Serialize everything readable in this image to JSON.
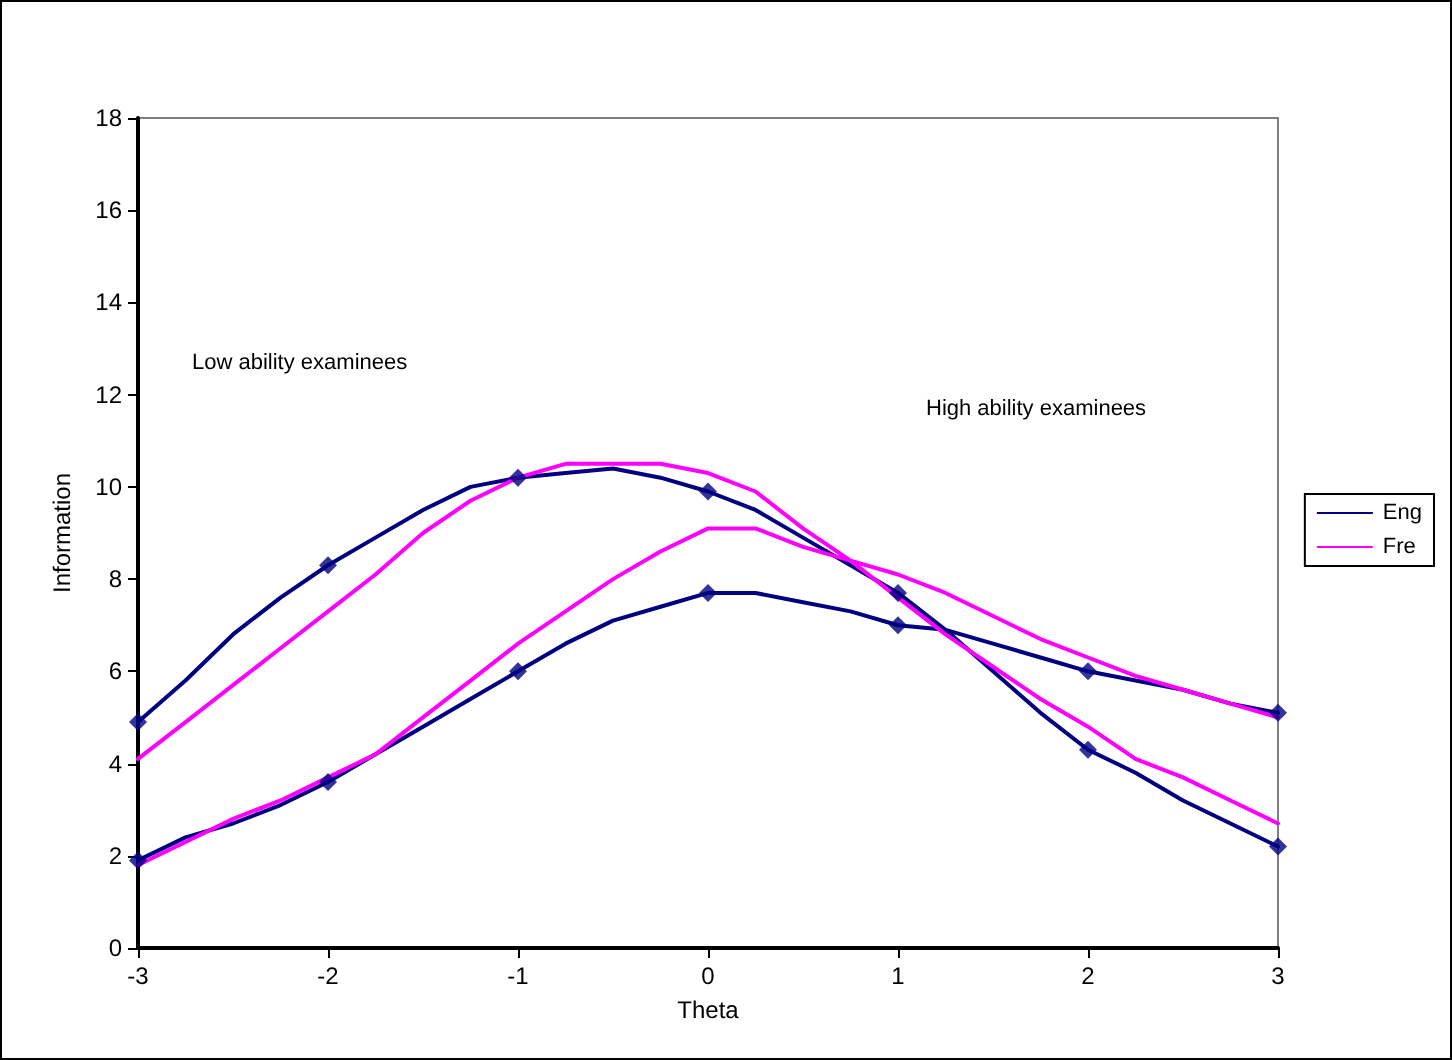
{
  "chart_data": {
    "type": "line",
    "xlabel": "Theta",
    "ylabel": "Information",
    "x": [
      -3,
      -2.75,
      -2.5,
      -2.25,
      -2,
      -1.75,
      -1.5,
      -1.25,
      -1,
      -0.75,
      -0.5,
      -0.25,
      0,
      0.25,
      0.5,
      0.75,
      1,
      1.25,
      1.5,
      1.75,
      2,
      2.25,
      2.5,
      2.75,
      3,
      null,
      -3,
      -2.75,
      -2.5,
      -2.25,
      -2,
      -1.75,
      -1.5,
      -1.25,
      -1,
      -0.75,
      -0.5,
      -0.25,
      0,
      0.25,
      0.5,
      0.75,
      1,
      1.25,
      1.5,
      1.75,
      2,
      2.25,
      2.5,
      2.75,
      3
    ],
    "series": [
      {
        "name": "Eng",
        "color": "#000080",
        "marker": "none",
        "values": [
          4.9,
          5.8,
          6.8,
          7.6,
          8.3,
          8.9,
          9.5,
          10.0,
          10.2,
          10.3,
          10.4,
          10.2,
          9.9,
          9.5,
          8.9,
          8.3,
          7.7,
          6.9,
          6.0,
          5.1,
          4.3,
          3.8,
          3.2,
          2.7,
          2.2,
          null,
          1.9,
          2.4,
          2.7,
          3.1,
          3.6,
          4.2,
          4.8,
          5.4,
          6.0,
          6.6,
          7.1,
          7.4,
          7.7,
          7.7,
          7.5,
          7.3,
          7.0,
          6.9,
          6.6,
          6.3,
          6.0,
          5.8,
          5.6,
          5.3,
          5.1
        ]
      },
      {
        "name": "Fre",
        "color": "#ff00ff",
        "marker": "none",
        "values": [
          4.1,
          4.9,
          5.7,
          6.5,
          7.3,
          8.1,
          9.0,
          9.7,
          10.2,
          10.5,
          10.5,
          10.5,
          10.3,
          9.9,
          9.1,
          8.4,
          7.6,
          6.8,
          6.1,
          5.4,
          4.8,
          4.1,
          3.7,
          3.2,
          2.7,
          null,
          1.8,
          2.3,
          2.8,
          3.2,
          3.7,
          4.2,
          5.0,
          5.8,
          6.6,
          7.3,
          8.0,
          8.6,
          9.1,
          9.1,
          8.7,
          8.4,
          8.1,
          7.7,
          7.2,
          6.7,
          6.3,
          5.9,
          5.6,
          5.3,
          5.0
        ]
      },
      {
        "type": "scatter",
        "color": "#000080",
        "marker": "diamond",
        "x": [
          -3,
          -2,
          -1,
          0,
          1,
          2,
          3,
          -3,
          -2,
          -1,
          0,
          1,
          2,
          3
        ],
        "values": [
          4.9,
          8.3,
          10.2,
          9.9,
          7.7,
          4.3,
          2.2,
          1.9,
          3.6,
          6.0,
          7.7,
          7.0,
          6.0,
          5.1
        ]
      }
    ],
    "xlim": [
      -3,
      3
    ],
    "xticks": [
      -3,
      -2,
      -1,
      0,
      1,
      2,
      3
    ],
    "ylim": [
      0,
      18
    ],
    "yticks": [
      0,
      2,
      4,
      6,
      8,
      10,
      12,
      14,
      16,
      18
    ],
    "annotations": [
      "Low ability examinees",
      "High ability examinees"
    ],
    "grid": false,
    "legend": "right",
    "line_style": "solid"
  }
}
